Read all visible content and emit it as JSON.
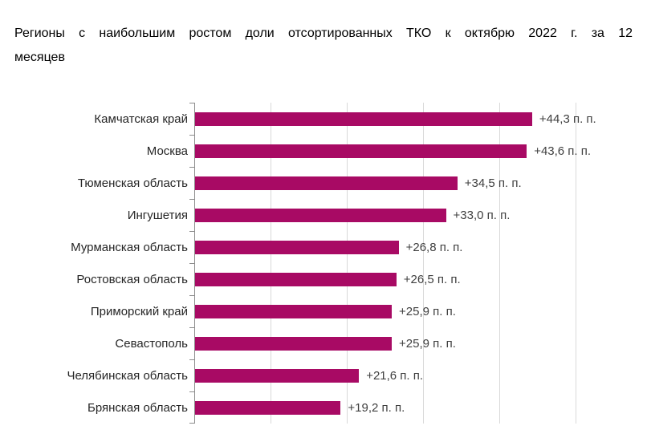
{
  "title": {
    "line1": "Регионы с наибольшим ростом доли отсортированных ТКО к октябрю 2022 г. за 12",
    "line2": "месяцев"
  },
  "chart_data": {
    "type": "bar",
    "orientation": "horizontal",
    "title": "Регионы с наибольшим ростом доли отсортированных ТКО к октябрю 2022 г. за 12 месяцев",
    "categories": [
      "Камчатская край",
      "Москва",
      "Тюменская область",
      "Ингушетия",
      "Мурманская область",
      "Ростовская область",
      "Приморский край",
      "Севастополь",
      "Челябинская область",
      "Брянская область"
    ],
    "values": [
      44.3,
      43.6,
      34.5,
      33.0,
      26.8,
      26.5,
      25.9,
      25.9,
      21.6,
      19.2
    ],
    "value_labels": [
      "+44,3 п. п.",
      "+43,6 п. п.",
      "+34,5 п. п.",
      "+33,0 п. п.",
      "+26,8 п. п.",
      "+26,5 п. п.",
      "+25,9 п. п.",
      "+25,9 п. п.",
      "+21,6 п. п.",
      "+19,2 п. п."
    ],
    "xlim": [
      0,
      50
    ],
    "gridline_step": 10,
    "grid": "vertical-only",
    "legend": "none",
    "xlabel": "",
    "ylabel": "",
    "bar_color": "#a80a64",
    "gridline_color": "#d9d9d9",
    "axis_color": "#8c8c8c"
  }
}
